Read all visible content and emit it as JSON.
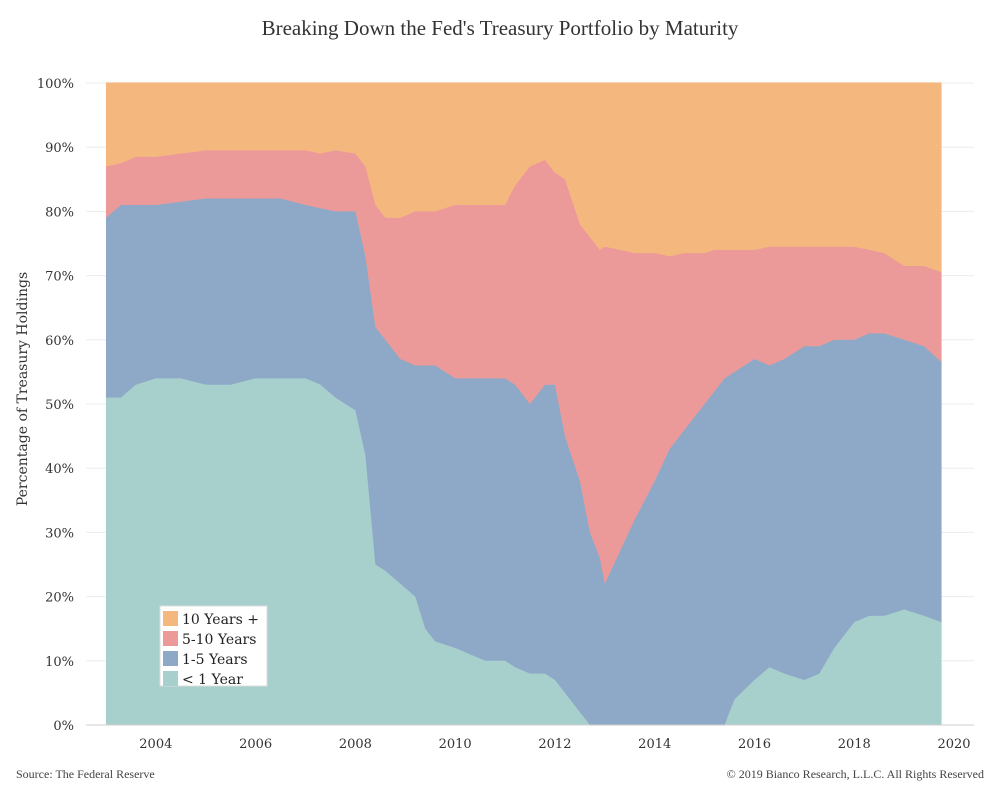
{
  "title": "Breaking Down the Fed's Treasury Portfolio by Maturity",
  "footer": {
    "source": "Source: The Federal Reserve",
    "copyright": "© 2019 Bianco Research, L.L.C. All Rights Reserved"
  },
  "chart_data": {
    "type": "area",
    "stacked": true,
    "title": "Breaking Down the Fed's Treasury Portfolio by Maturity",
    "xlabel": "",
    "ylabel": "Percentage of Treasury Holdings",
    "xlim": [
      2002.6,
      2020.4
    ],
    "ylim": [
      0,
      100
    ],
    "x_ticks": [
      2004,
      2006,
      2008,
      2010,
      2012,
      2014,
      2016,
      2018,
      2020
    ],
    "y_ticks": [
      0,
      10,
      20,
      30,
      40,
      50,
      60,
      70,
      80,
      90,
      100
    ],
    "y_tick_suffix": "%",
    "grid": "horizontal",
    "legend_position": "bottom-left",
    "x": [
      2003.0,
      2003.3,
      2003.6,
      2004.0,
      2004.5,
      2005.0,
      2005.5,
      2006.0,
      2006.5,
      2007.0,
      2007.3,
      2007.6,
      2008.0,
      2008.2,
      2008.4,
      2008.6,
      2008.9,
      2009.2,
      2009.4,
      2009.6,
      2010.0,
      2010.3,
      2010.6,
      2011.0,
      2011.2,
      2011.5,
      2011.8,
      2012.0,
      2012.2,
      2012.5,
      2012.7,
      2012.9,
      2013.0,
      2013.3,
      2013.6,
      2014.0,
      2014.3,
      2014.6,
      2015.0,
      2015.2,
      2015.4,
      2015.6,
      2016.0,
      2016.3,
      2016.6,
      2017.0,
      2017.3,
      2017.6,
      2018.0,
      2018.3,
      2018.6,
      2019.0,
      2019.4,
      2019.75
    ],
    "series": [
      {
        "name": "< 1 Year",
        "color": "#a7d0cd",
        "values": [
          51,
          51,
          53,
          54,
          54,
          53,
          53,
          54,
          54,
          54,
          53,
          51,
          49,
          42,
          25,
          24,
          22,
          20,
          15,
          13,
          12,
          11,
          10,
          10,
          9,
          8,
          8,
          7,
          5,
          2,
          0,
          0,
          0,
          0,
          0,
          0,
          0,
          0,
          0,
          0,
          0,
          4,
          7,
          9,
          8,
          7,
          8,
          12,
          16,
          17,
          17,
          18,
          17,
          16
        ]
      },
      {
        "name": "1-5 Years",
        "color": "#8ea8c7",
        "values": [
          28,
          30,
          28,
          27,
          27.5,
          29,
          29,
          28,
          28,
          27,
          27.5,
          29,
          31,
          31,
          37,
          36,
          35,
          36,
          41,
          43,
          42,
          43,
          44,
          44,
          44,
          42,
          45,
          46,
          40,
          36,
          30,
          26,
          22,
          27,
          32,
          38,
          43,
          46,
          50,
          52,
          54,
          51,
          50,
          47,
          49,
          52,
          51,
          48,
          44,
          44,
          44,
          42,
          42,
          40.5
        ]
      },
      {
        "name": "5-10 Years",
        "color": "#ec9999",
        "values": [
          8,
          6.5,
          7.5,
          7.5,
          7.5,
          7.5,
          7.5,
          7.5,
          7.5,
          8.5,
          8.5,
          9.5,
          9,
          14,
          19,
          19,
          22,
          24,
          24,
          24,
          27,
          27,
          27,
          27,
          31,
          37,
          35,
          33,
          40,
          40,
          46,
          48,
          52.5,
          47,
          41.5,
          35.5,
          30,
          27.5,
          23.5,
          22,
          20,
          19,
          17,
          18.5,
          17.5,
          15.5,
          15.5,
          14.5,
          14.5,
          13,
          12.5,
          11.5,
          12.5,
          14
        ]
      },
      {
        "name": "10 Years +",
        "color": "#f4b77e",
        "values": [
          13,
          12.5,
          11.5,
          11.5,
          11,
          10.5,
          10.5,
          10.5,
          10.5,
          10.5,
          11,
          10.5,
          11,
          13,
          19,
          21,
          21,
          20,
          20,
          20,
          19,
          19,
          19,
          19,
          16,
          13,
          12,
          14,
          15,
          22,
          24,
          26,
          25.5,
          26,
          26.5,
          26.5,
          27,
          26.5,
          26.5,
          26,
          26,
          26,
          26,
          25.5,
          25.5,
          25.5,
          25.5,
          25.5,
          25.5,
          26,
          26.5,
          28.5,
          28.5,
          29.5
        ]
      }
    ]
  }
}
